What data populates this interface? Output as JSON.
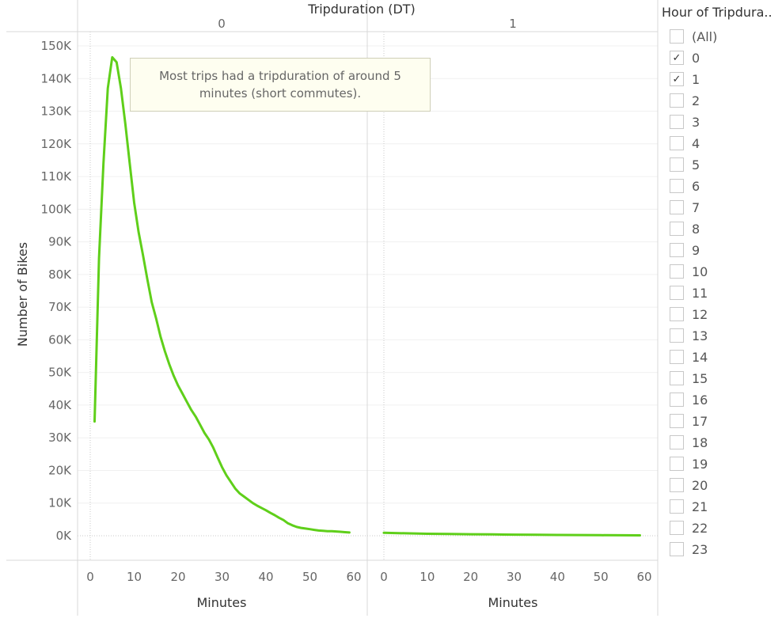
{
  "chart_data": {
    "type": "line",
    "title": "Tripduration (DT)",
    "ylabel": "Number of Bikes",
    "xlabel": "Minutes",
    "ylim": [
      0,
      150000
    ],
    "y_ticks": [
      0,
      10000,
      20000,
      30000,
      40000,
      50000,
      60000,
      70000,
      80000,
      90000,
      100000,
      110000,
      120000,
      130000,
      140000,
      150000
    ],
    "y_tick_labels": [
      "0K",
      "10K",
      "20K",
      "30K",
      "40K",
      "50K",
      "60K",
      "70K",
      "80K",
      "90K",
      "100K",
      "110K",
      "120K",
      "130K",
      "140K",
      "150K"
    ],
    "x_ticks": [
      0,
      10,
      20,
      30,
      40,
      50,
      60
    ],
    "color": "#5fcf1a",
    "panels": [
      {
        "label": "0",
        "x": [
          1,
          2,
          3,
          4,
          5,
          6,
          7,
          8,
          9,
          10,
          11,
          12,
          13,
          14,
          15,
          16,
          17,
          18,
          19,
          20,
          21,
          22,
          23,
          24,
          25,
          26,
          27,
          28,
          29,
          30,
          31,
          32,
          33,
          34,
          35,
          36,
          37,
          38,
          39,
          40,
          41,
          42,
          43,
          44,
          45,
          46,
          47,
          48,
          49,
          50,
          51,
          52,
          53,
          54,
          55,
          56,
          57,
          58,
          59
        ],
        "values": [
          35000,
          85000,
          114000,
          137000,
          146500,
          145000,
          137000,
          126000,
          114000,
          102000,
          93000,
          86000,
          78500,
          71500,
          66500,
          61000,
          56500,
          52500,
          49000,
          46000,
          43500,
          41000,
          38500,
          36500,
          34000,
          31500,
          29500,
          27000,
          24000,
          21000,
          18500,
          16500,
          14500,
          13000,
          12000,
          11000,
          10000,
          9200,
          8500,
          7800,
          7000,
          6300,
          5500,
          4800,
          3800,
          3200,
          2700,
          2400,
          2200,
          2000,
          1800,
          1600,
          1500,
          1400,
          1400,
          1300,
          1200,
          1100,
          1000
        ]
      },
      {
        "label": "1",
        "x": [
          0,
          5,
          10,
          15,
          20,
          25,
          30,
          35,
          40,
          45,
          50,
          55,
          59
        ],
        "values": [
          900,
          750,
          600,
          550,
          450,
          400,
          350,
          300,
          250,
          220,
          180,
          150,
          120
        ]
      }
    ],
    "annotation": "Most trips had a tripduration of around 5 minutes (short commutes).",
    "legend": {
      "title": "Hour of Tripdura..",
      "placement": "right",
      "items": [
        {
          "label": "(All)",
          "checked": false
        },
        {
          "label": "0",
          "checked": true
        },
        {
          "label": "1",
          "checked": true
        },
        {
          "label": "2",
          "checked": false
        },
        {
          "label": "3",
          "checked": false
        },
        {
          "label": "4",
          "checked": false
        },
        {
          "label": "5",
          "checked": false
        },
        {
          "label": "6",
          "checked": false
        },
        {
          "label": "7",
          "checked": false
        },
        {
          "label": "8",
          "checked": false
        },
        {
          "label": "9",
          "checked": false
        },
        {
          "label": "10",
          "checked": false
        },
        {
          "label": "11",
          "checked": false
        },
        {
          "label": "12",
          "checked": false
        },
        {
          "label": "13",
          "checked": false
        },
        {
          "label": "14",
          "checked": false
        },
        {
          "label": "15",
          "checked": false
        },
        {
          "label": "16",
          "checked": false
        },
        {
          "label": "17",
          "checked": false
        },
        {
          "label": "18",
          "checked": false
        },
        {
          "label": "19",
          "checked": false
        },
        {
          "label": "20",
          "checked": false
        },
        {
          "label": "21",
          "checked": false
        },
        {
          "label": "22",
          "checked": false
        },
        {
          "label": "23",
          "checked": false
        }
      ]
    },
    "grid": true
  }
}
